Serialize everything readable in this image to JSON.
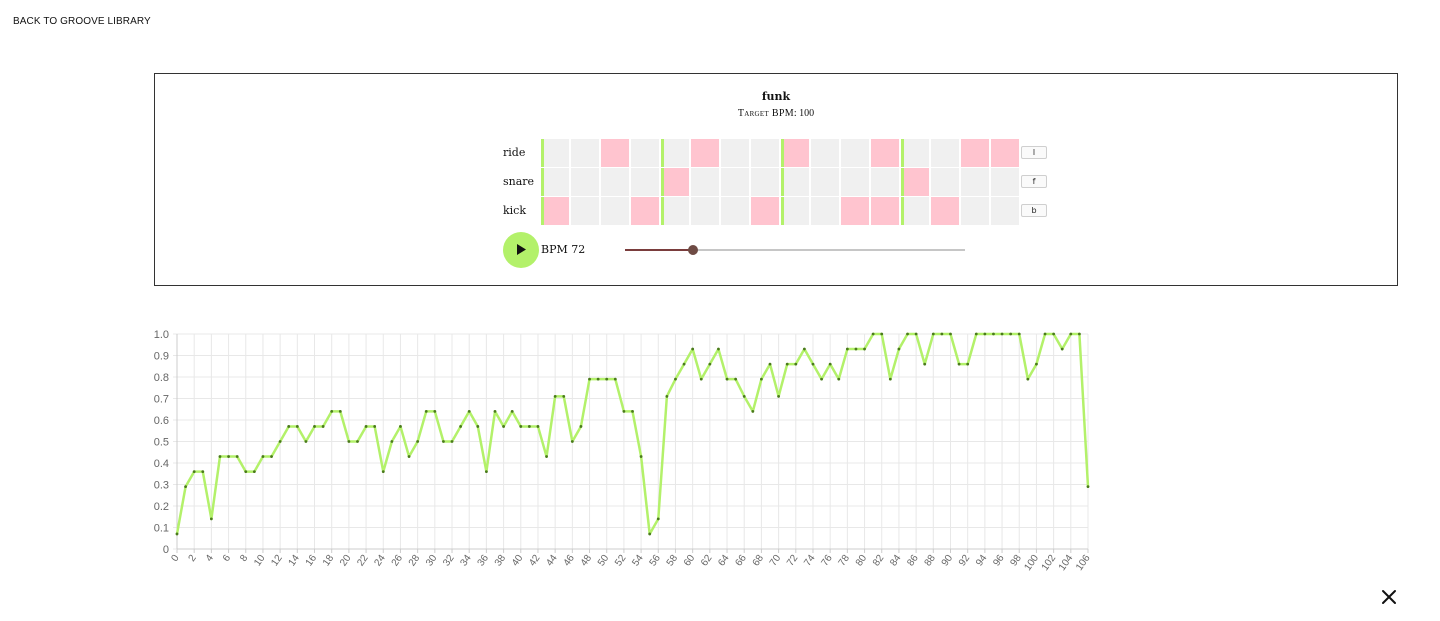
{
  "nav": {
    "back_label": "BACK TO GROOVE LIBRARY"
  },
  "groove": {
    "title": "funk",
    "target_label": "Target BPM",
    "target_value": "100"
  },
  "tracks": [
    {
      "name": "ride",
      "key": "l",
      "steps": [
        0,
        0,
        1,
        0,
        0,
        1,
        0,
        0,
        1,
        0,
        0,
        1,
        0,
        0,
        1,
        1
      ]
    },
    {
      "name": "snare",
      "key": "f",
      "steps": [
        0,
        0,
        0,
        0,
        1,
        0,
        0,
        0,
        0,
        0,
        0,
        0,
        1,
        0,
        0,
        0
      ]
    },
    {
      "name": "kick",
      "key": "b",
      "steps": [
        1,
        0,
        0,
        1,
        0,
        0,
        0,
        1,
        0,
        0,
        1,
        1,
        0,
        1,
        0,
        0
      ]
    }
  ],
  "player": {
    "bpm_label": "BPM 72",
    "bpm_value": 72,
    "slider_fraction": 0.2
  },
  "colors": {
    "accent": "#b3f16a",
    "step_on": "#ffc4cf",
    "step_off": "#f0f0f0",
    "slider_fill": "#7a3d3d",
    "slider_thumb": "#6e4b44"
  },
  "icons": {
    "play": "play-icon",
    "close": "close-icon"
  },
  "chart_data": {
    "type": "line",
    "title": "",
    "xlabel": "",
    "ylabel": "",
    "ylim": [
      0,
      1
    ],
    "xlim": [
      0,
      106
    ],
    "grid": true,
    "y_ticks": [
      "0",
      "0.1",
      "0.2",
      "0.3",
      "0.4",
      "0.5",
      "0.6",
      "0.7",
      "0.8",
      "0.9",
      "1.0"
    ],
    "x_tick_step": 2,
    "series": [
      {
        "color": "#b3f16a",
        "values": [
          0.07,
          0.29,
          0.36,
          0.36,
          0.14,
          0.43,
          0.43,
          0.43,
          0.36,
          0.36,
          0.43,
          0.43,
          0.5,
          0.57,
          0.57,
          0.5,
          0.57,
          0.57,
          0.64,
          0.64,
          0.5,
          0.5,
          0.57,
          0.57,
          0.36,
          0.5,
          0.57,
          0.43,
          0.5,
          0.64,
          0.64,
          0.5,
          0.5,
          0.57,
          0.64,
          0.57,
          0.36,
          0.64,
          0.57,
          0.64,
          0.57,
          0.57,
          0.57,
          0.43,
          0.71,
          0.71,
          0.5,
          0.57,
          0.79,
          0.79,
          0.79,
          0.79,
          0.64,
          0.64,
          0.43,
          0.07,
          0.14,
          0.71,
          0.79,
          0.86,
          0.93,
          0.79,
          0.86,
          0.93,
          0.79,
          0.79,
          0.71,
          0.64,
          0.79,
          0.86,
          0.71,
          0.86,
          0.86,
          0.93,
          0.86,
          0.79,
          0.86,
          0.79,
          0.93,
          0.93,
          0.93,
          1.0,
          1.0,
          0.79,
          0.93,
          1.0,
          1.0,
          0.86,
          1.0,
          1.0,
          1.0,
          0.86,
          0.86,
          1.0,
          1.0,
          1.0,
          1.0,
          1.0,
          1.0,
          0.79,
          0.86,
          1.0,
          1.0,
          0.93,
          1.0,
          1.0,
          0.29
        ]
      }
    ]
  }
}
